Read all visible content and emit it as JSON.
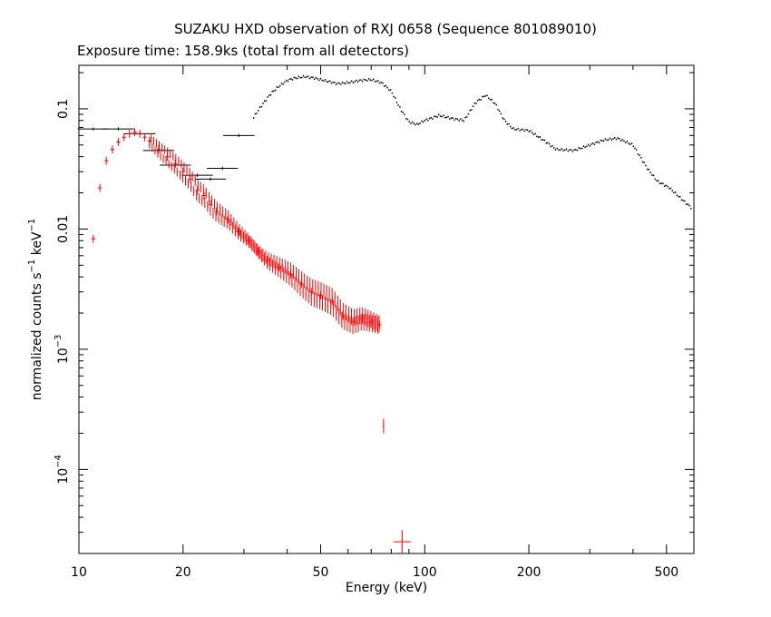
{
  "chart_data": {
    "type": "scatter",
    "title": "SUZAKU HXD observation of RXJ 0658 (Sequence 801089010)",
    "subtitle": "Exposure time: 158.9ks (total from all detectors)",
    "xlabel": "Energy (keV)",
    "ylabel_main": "normalized counts s",
    "ylabel_unit": " keV",
    "ylabel_exp": "−1",
    "x_scale": "log",
    "y_scale": "log",
    "xlim": [
      10,
      600
    ],
    "ylim": [
      2e-05,
      0.23
    ],
    "grid": false,
    "x_ticks": [
      {
        "value": 10,
        "label": "10"
      },
      {
        "value": 20,
        "label": "20"
      },
      {
        "value": 50,
        "label": "50"
      },
      {
        "value": 100,
        "label": "100"
      },
      {
        "value": 200,
        "label": "200"
      },
      {
        "value": 500,
        "label": "500"
      }
    ],
    "y_ticks": [
      {
        "value": 0.0001,
        "label": "10",
        "exp": "−4"
      },
      {
        "value": 0.001,
        "label": "10",
        "exp": "−3"
      },
      {
        "value": 0.01,
        "label": "0.01",
        "exp": ""
      },
      {
        "value": 0.1,
        "label": "0.1",
        "exp": ""
      }
    ],
    "series": [
      {
        "color": "#000000",
        "marker": "cross",
        "description_points": [
          [
            11,
            0.068
          ],
          [
            13,
            0.068
          ],
          [
            15,
            0.062
          ],
          [
            17,
            0.045
          ],
          [
            19,
            0.034
          ],
          [
            22,
            0.028
          ],
          [
            24,
            0.026
          ],
          [
            26,
            0.032
          ],
          [
            29,
            0.06
          ],
          [
            32,
            0.085
          ],
          [
            34,
            0.11
          ],
          [
            36,
            0.135
          ],
          [
            38,
            0.155
          ],
          [
            40,
            0.172
          ],
          [
            42,
            0.18
          ],
          [
            45,
            0.185
          ],
          [
            48,
            0.18
          ],
          [
            52,
            0.17
          ],
          [
            56,
            0.162
          ],
          [
            60,
            0.165
          ],
          [
            65,
            0.172
          ],
          [
            70,
            0.175
          ],
          [
            75,
            0.165
          ],
          [
            80,
            0.14
          ],
          [
            85,
            0.1
          ],
          [
            90,
            0.078
          ],
          [
            95,
            0.074
          ],
          [
            100,
            0.08
          ],
          [
            110,
            0.088
          ],
          [
            120,
            0.083
          ],
          [
            130,
            0.08
          ],
          [
            140,
            0.112
          ],
          [
            150,
            0.13
          ],
          [
            160,
            0.11
          ],
          [
            170,
            0.08
          ],
          [
            180,
            0.068
          ],
          [
            200,
            0.066
          ],
          [
            220,
            0.055
          ],
          [
            240,
            0.046
          ],
          [
            270,
            0.045
          ],
          [
            300,
            0.05
          ],
          [
            330,
            0.055
          ],
          [
            360,
            0.057
          ],
          [
            400,
            0.05
          ],
          [
            440,
            0.032
          ],
          [
            470,
            0.025
          ],
          [
            510,
            0.022
          ],
          [
            550,
            0.018
          ],
          [
            590,
            0.015
          ]
        ]
      },
      {
        "color": "#ff0000",
        "marker": "cross",
        "description_points": [
          [
            11,
            0.0083
          ],
          [
            11.5,
            0.022
          ],
          [
            12,
            0.037
          ],
          [
            12.5,
            0.046
          ],
          [
            13,
            0.053
          ],
          [
            13.5,
            0.058
          ],
          [
            14,
            0.062
          ],
          [
            14.5,
            0.064
          ],
          [
            15,
            0.062
          ],
          [
            15.5,
            0.058
          ],
          [
            16,
            0.054
          ],
          [
            17,
            0.046
          ],
          [
            18,
            0.04
          ],
          [
            19,
            0.035
          ],
          [
            20,
            0.03
          ],
          [
            21,
            0.026
          ],
          [
            22,
            0.021
          ],
          [
            23,
            0.019
          ],
          [
            24,
            0.016
          ],
          [
            25,
            0.014
          ],
          [
            27,
            0.012
          ],
          [
            29,
            0.0095
          ],
          [
            31,
            0.008
          ],
          [
            33,
            0.0065
          ],
          [
            35,
            0.0055
          ],
          [
            38,
            0.0048
          ],
          [
            41,
            0.0042
          ],
          [
            44,
            0.0035
          ],
          [
            47,
            0.003
          ],
          [
            50,
            0.0028
          ],
          [
            54,
            0.0025
          ],
          [
            58,
            0.0019
          ],
          [
            62,
            0.0017
          ],
          [
            66,
            0.0018
          ],
          [
            70,
            0.0017
          ],
          [
            74,
            0.0016
          ],
          [
            76,
            0.00023
          ],
          [
            86,
            2.5e-05
          ]
        ]
      }
    ]
  }
}
